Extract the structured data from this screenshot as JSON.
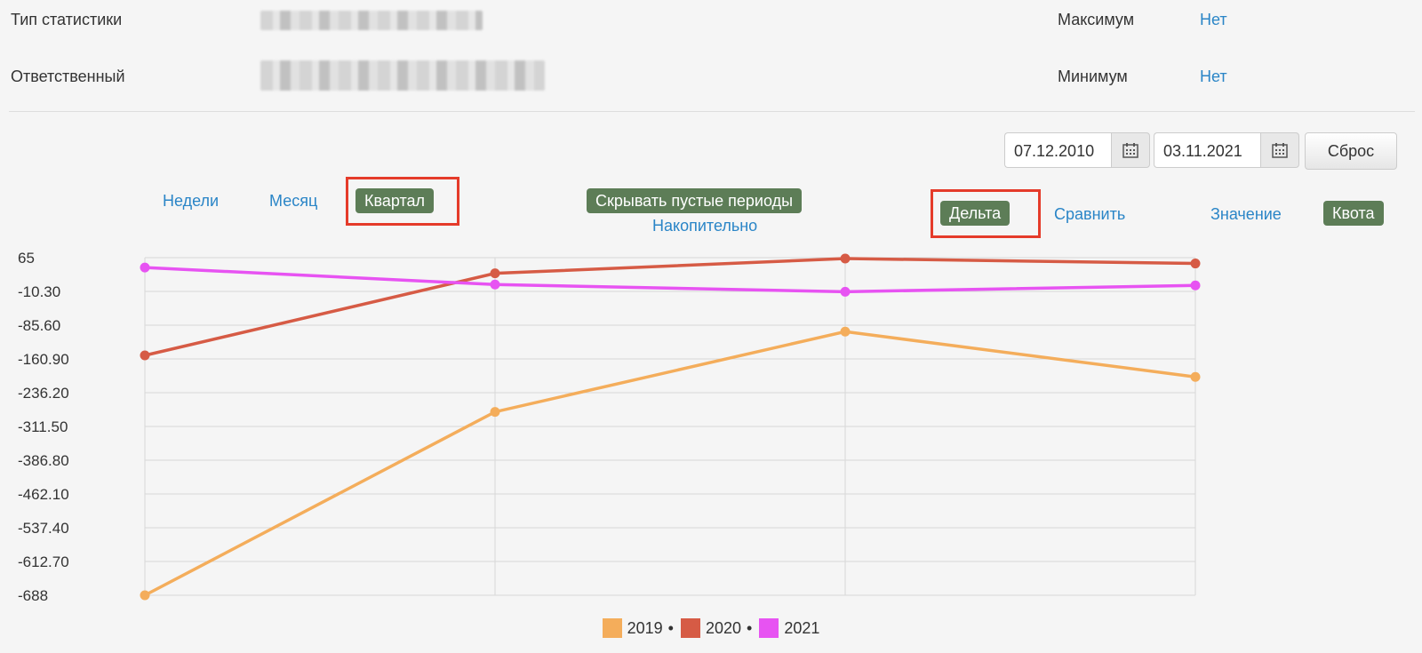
{
  "info": {
    "stat_type_label": "Тип статистики",
    "responsible_label": "Ответственный",
    "max_label": "Максимум",
    "max_value": "Нет",
    "min_label": "Минимум",
    "min_value": "Нет"
  },
  "filters": {
    "date_from": "07.12.2010",
    "date_to": "03.11.2021",
    "reset_label": "Сброс",
    "calendar_icon": "calendar-icon"
  },
  "controls": {
    "weeks": "Недели",
    "month": "Месяц",
    "quarter": "Квартал",
    "hide_empty": "Скрывать пустые периоды",
    "cumulative": "Накопительно",
    "delta": "Дельта",
    "compare": "Сравнить",
    "value": "Значение",
    "quota": "Квота",
    "active_color": "#5d7d57",
    "highlight_color": "#e53b2a"
  },
  "chart_data": {
    "type": "line",
    "y_ticks": [
      "65",
      "-10.30",
      "-85.60",
      "-160.90",
      "-236.20",
      "-311.50",
      "-386.80",
      "-462.10",
      "-537.40",
      "-612.70",
      "-688"
    ],
    "ylim": [
      -688,
      65
    ],
    "grid": true,
    "legend_position": "bottom",
    "x": [
      1,
      2,
      3,
      4
    ],
    "series": [
      {
        "name": "2019",
        "color": "#f4ad5b",
        "values": [
          -688,
          -279,
          -100,
          -201
        ]
      },
      {
        "name": "2020",
        "color": "#d65b45",
        "values": [
          -153,
          30,
          63,
          52
        ]
      },
      {
        "name": "2021",
        "color": "#e753f2",
        "values": [
          43,
          5,
          -11,
          3
        ]
      }
    ]
  }
}
